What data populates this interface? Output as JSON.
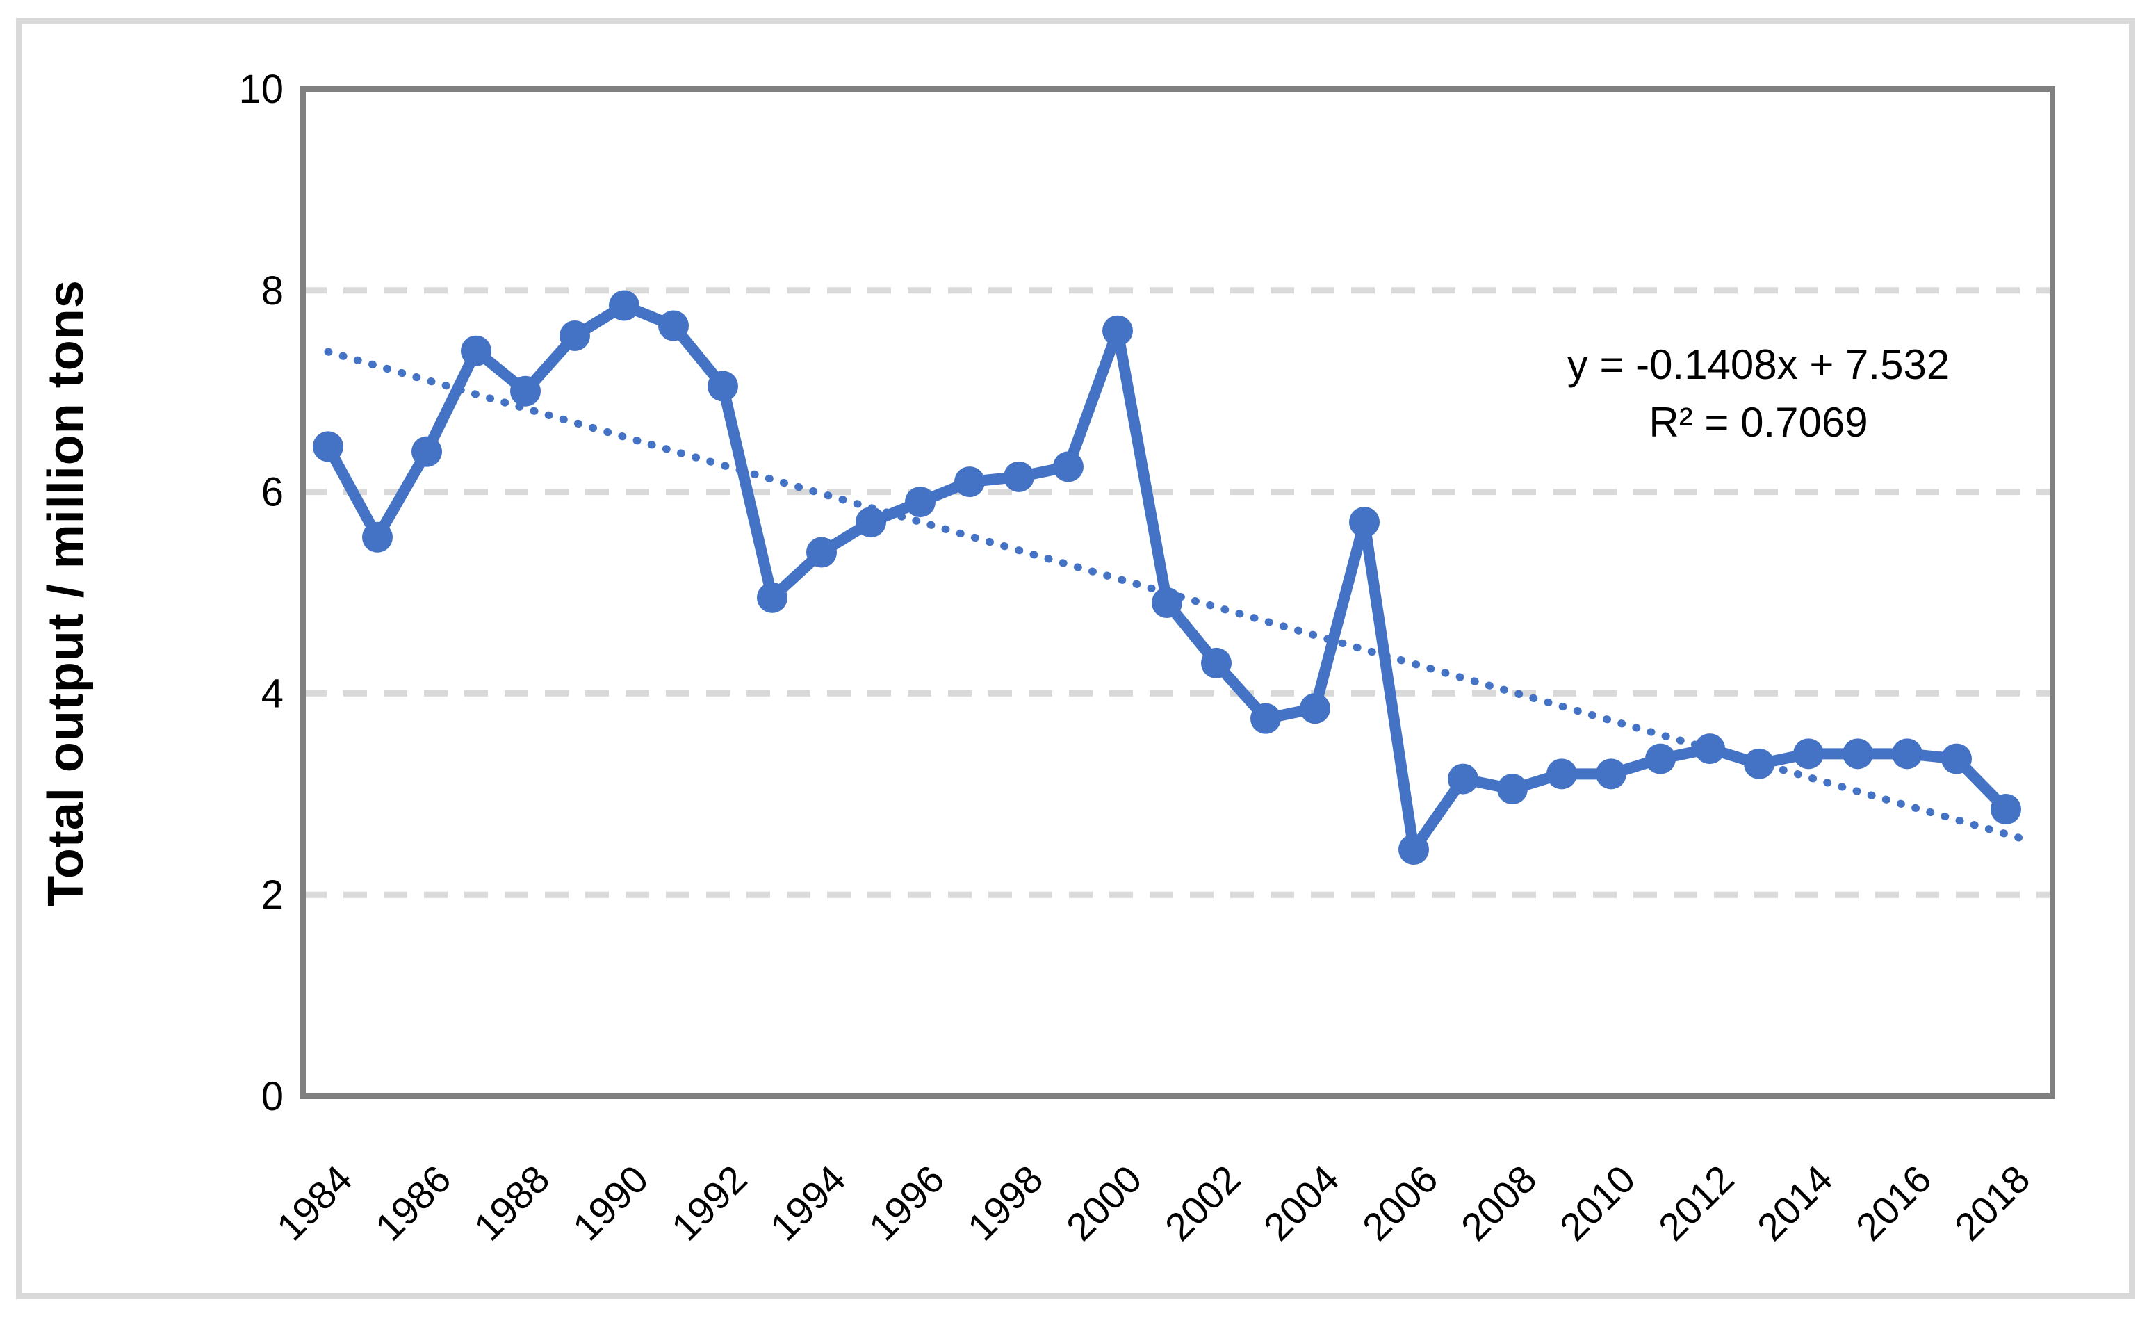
{
  "chart_data": {
    "type": "line",
    "title": "",
    "ylabel": "Total output / million tons",
    "xlabel": "",
    "x": [
      1984,
      1985,
      1986,
      1987,
      1988,
      1989,
      1990,
      1991,
      1992,
      1993,
      1994,
      1995,
      1996,
      1997,
      1998,
      1999,
      2000,
      2001,
      2002,
      2003,
      2004,
      2005,
      2006,
      2007,
      2008,
      2009,
      2010,
      2011,
      2012,
      2013,
      2014,
      2015,
      2016,
      2017,
      2018
    ],
    "series": [
      {
        "name": "Total output",
        "values": [
          6.45,
          5.55,
          6.4,
          7.4,
          7.0,
          7.55,
          7.85,
          7.65,
          7.05,
          4.95,
          5.4,
          5.7,
          5.9,
          6.1,
          6.15,
          6.25,
          7.6,
          4.9,
          4.3,
          3.75,
          3.85,
          5.7,
          2.45,
          3.15,
          3.05,
          3.2,
          3.2,
          3.35,
          3.45,
          3.3,
          3.4,
          3.4,
          3.4,
          3.35,
          2.85
        ]
      }
    ],
    "trendline": {
      "label_line1": "y = -0.1408x + 7.532",
      "label_line2": "R² = 0.7069",
      "slope": -0.1408,
      "intercept": 7.532,
      "r2": 0.7069,
      "style": "dotted"
    },
    "ylim": [
      0,
      10
    ],
    "yticks": [
      0,
      2,
      4,
      6,
      8,
      10
    ],
    "xtick_labels": [
      1984,
      1986,
      1988,
      1990,
      1992,
      1994,
      1996,
      1998,
      2000,
      2002,
      2004,
      2006,
      2008,
      2010,
      2012,
      2014,
      2016,
      2018
    ],
    "grid": "horizontal-dashed",
    "legend": "none",
    "colors": {
      "series": "#4472C4",
      "trendline": "#4472C4",
      "gridline": "#d9d9d9",
      "axis_frame": "#808080",
      "text": "#000000",
      "outer_border": "#d9d9d9",
      "background": "#ffffff"
    }
  }
}
